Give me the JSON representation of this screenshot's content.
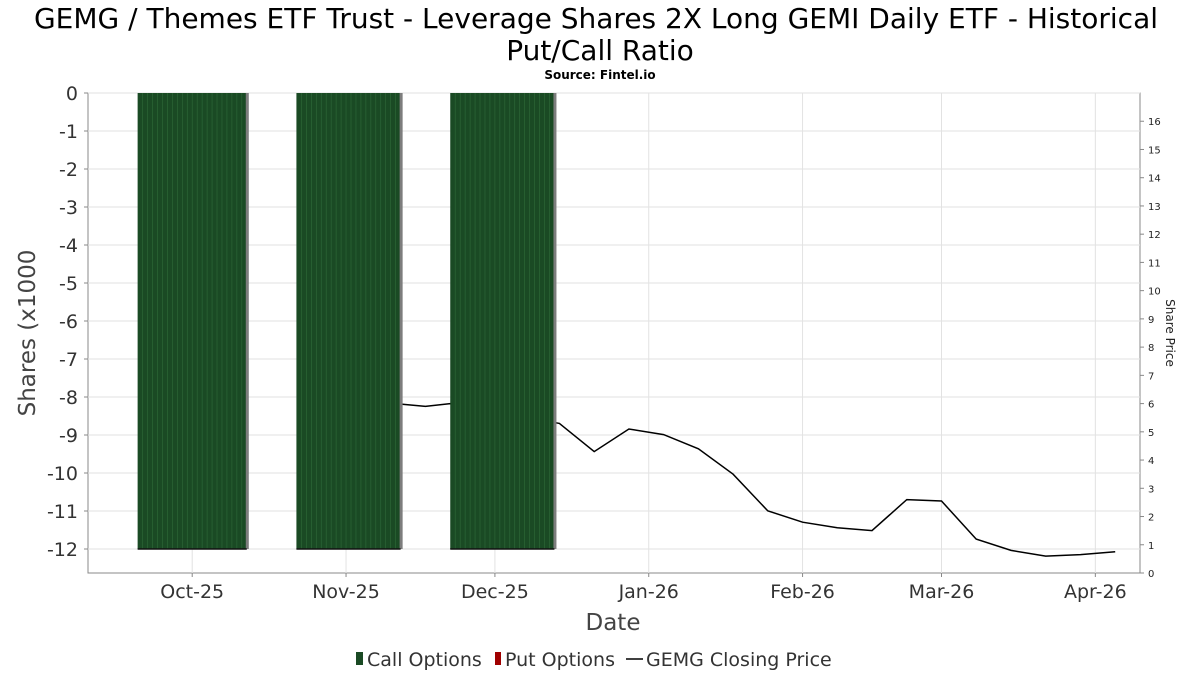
{
  "chart_data": {
    "type": "bar",
    "title_line1": "GEMG / Themes ETF Trust - Leverage Shares 2X Long GEMI Daily ETF - Historical",
    "title_line2": "Put/Call Ratio",
    "subtitle": "Source: Fintel.io",
    "xlabel": "Date",
    "ylabel": "Shares (x1000",
    "y2label": "Share Price",
    "ylim": [
      -12.6,
      0
    ],
    "y2lim": [
      0,
      17
    ],
    "yticks": [
      "0",
      "-1",
      "-2",
      "-3",
      "-4",
      "-5",
      "-6",
      "-7",
      "-8",
      "-9",
      "-10",
      "-11",
      "-12"
    ],
    "y2ticks": [
      "0",
      "1",
      "2",
      "3",
      "4",
      "5",
      "6",
      "7",
      "8",
      "9",
      "10",
      "11",
      "12",
      "13",
      "14",
      "15",
      "16"
    ],
    "xlim": [
      "2025-09-10",
      "2026-04-10"
    ],
    "xticks": [
      {
        "label": "Oct-25",
        "date": "2025-10-01"
      },
      {
        "label": "Nov-25",
        "date": "2025-11-01"
      },
      {
        "label": "Dec-25",
        "date": "2025-12-01"
      },
      {
        "label": "Jan-26",
        "date": "2026-01-01"
      },
      {
        "label": "Feb-26",
        "date": "2026-02-01"
      },
      {
        "label": "Mar-26",
        "date": "2026-03-01"
      },
      {
        "label": "Apr-26",
        "date": "2026-04-01"
      }
    ],
    "grid": true,
    "legend_position": "bottom",
    "legend": [
      "Call Options",
      "Put Options",
      "GEMG Closing Price"
    ],
    "series": [
      {
        "name": "Call Options",
        "color": "#1a4a24",
        "bands": [
          {
            "start": "2025-09-20",
            "end": "2025-10-12",
            "value": -12
          },
          {
            "start": "2025-10-22",
            "end": "2025-11-12",
            "value": -12
          },
          {
            "start": "2025-11-22",
            "end": "2025-12-13",
            "value": -12
          }
        ]
      },
      {
        "name": "Put Options",
        "color": "#a00000",
        "bands": []
      },
      {
        "name": "GEMG Closing Price",
        "color": "#000000",
        "points": [
          {
            "date": "2025-11-06",
            "value": 6.5
          },
          {
            "date": "2025-11-11",
            "value": 6.0
          },
          {
            "date": "2025-11-17",
            "value": 5.9
          },
          {
            "date": "2025-11-22",
            "value": 6.0
          },
          {
            "date": "2025-12-14",
            "value": 5.3
          },
          {
            "date": "2025-12-21",
            "value": 4.3
          },
          {
            "date": "2025-12-28",
            "value": 5.1
          },
          {
            "date": "2026-01-04",
            "value": 4.9
          },
          {
            "date": "2026-01-11",
            "value": 4.4
          },
          {
            "date": "2026-01-18",
            "value": 3.5
          },
          {
            "date": "2026-01-25",
            "value": 2.2
          },
          {
            "date": "2026-02-01",
            "value": 1.8
          },
          {
            "date": "2026-02-08",
            "value": 1.6
          },
          {
            "date": "2026-02-15",
            "value": 1.5
          },
          {
            "date": "2026-02-22",
            "value": 2.6
          },
          {
            "date": "2026-03-01",
            "value": 2.55
          },
          {
            "date": "2026-03-08",
            "value": 1.2
          },
          {
            "date": "2026-03-15",
            "value": 0.8
          },
          {
            "date": "2026-03-22",
            "value": 0.6
          },
          {
            "date": "2026-03-29",
            "value": 0.65
          },
          {
            "date": "2026-04-05",
            "value": 0.75
          }
        ]
      }
    ]
  }
}
